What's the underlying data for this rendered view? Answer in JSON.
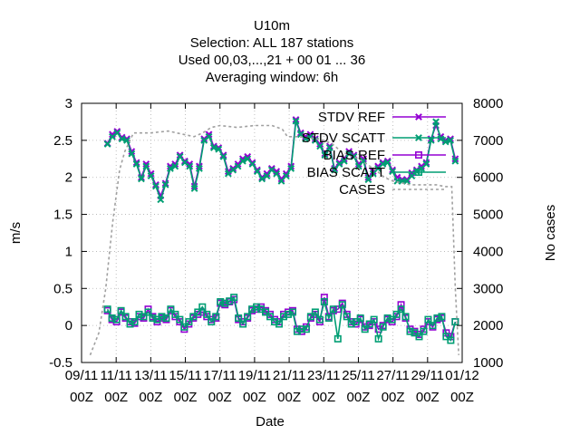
{
  "chart_data": {
    "type": "line",
    "title_lines": [
      "U10m",
      "Selection: ALL     187 stations",
      "Used  00,03,...,21  + 00 01 ... 36",
      "Averaging window:  6h"
    ],
    "xlabel": "Date",
    "ylabel": "m/s",
    "y2label": "No cases",
    "x_day_range": [
      9,
      31
    ],
    "ylim": [
      -0.5,
      3
    ],
    "y2lim": [
      1000,
      8000
    ],
    "grid": true,
    "legend_position": "top-right",
    "x_tick_labels": [
      {
        "d": 9,
        "line1": "09/11",
        "line2": "00Z"
      },
      {
        "d": 11,
        "line1": "11/11",
        "line2": "00Z"
      },
      {
        "d": 13,
        "line1": "13/11",
        "line2": "00Z"
      },
      {
        "d": 15,
        "line1": "15/11",
        "line2": "00Z"
      },
      {
        "d": 17,
        "line1": "17/11",
        "line2": "00Z"
      },
      {
        "d": 19,
        "line1": "19/11",
        "line2": "00Z"
      },
      {
        "d": 21,
        "line1": "21/11",
        "line2": "00Z"
      },
      {
        "d": 23,
        "line1": "23/11",
        "line2": "00Z"
      },
      {
        "d": 25,
        "line1": "25/11",
        "line2": "00Z"
      },
      {
        "d": 27,
        "line1": "27/11",
        "line2": "00Z"
      },
      {
        "d": 29,
        "line1": "29/11",
        "line2": "00Z"
      },
      {
        "d": 31,
        "line1": "01/12",
        "line2": "00Z"
      }
    ],
    "y_ticks": [
      "-0.5",
      "0",
      "0.5",
      "1",
      "1.5",
      "2",
      "2.5",
      "3"
    ],
    "y2_ticks": [
      "1000",
      "2000",
      "3000",
      "4000",
      "5000",
      "6000",
      "7000",
      "8000"
    ],
    "series": [
      {
        "name": "STDV REF",
        "color": "#9400d3",
        "marker": "x",
        "axis": "y",
        "values": [
          2.46,
          2.58,
          2.62,
          2.54,
          2.52,
          2.35,
          2.2,
          2.0,
          2.18,
          2.05,
          1.9,
          1.75,
          1.92,
          2.15,
          2.18,
          2.3,
          2.22,
          2.18,
          1.88,
          2.15,
          2.52,
          2.58,
          2.42,
          2.4,
          2.3,
          2.08,
          2.12,
          2.18,
          2.25,
          2.28,
          2.2,
          2.1,
          2.0,
          2.05,
          2.12,
          2.08,
          1.98,
          2.05,
          2.15,
          2.78,
          2.6,
          2.55,
          2.58,
          2.52,
          2.45,
          2.32,
          2.42,
          2.12,
          2.2,
          2.25,
          2.35,
          2.3,
          2.18,
          2.25,
          2.0,
          2.08,
          2.15,
          2.2,
          2.22,
          2.1,
          2.0,
          1.97,
          1.97,
          2.06,
          2.1,
          2.15,
          2.2,
          2.52,
          2.7,
          2.55,
          2.5,
          2.52,
          2.25
        ]
      },
      {
        "name": "STDV SCATT",
        "color": "#009e73",
        "marker": "x",
        "axis": "y",
        "values": [
          2.45,
          2.55,
          2.6,
          2.52,
          2.5,
          2.32,
          2.18,
          1.98,
          2.15,
          2.02,
          1.88,
          1.7,
          1.9,
          2.12,
          2.15,
          2.28,
          2.2,
          2.15,
          1.85,
          2.12,
          2.5,
          2.55,
          2.4,
          2.38,
          2.28,
          2.05,
          2.1,
          2.15,
          2.22,
          2.25,
          2.18,
          2.08,
          1.98,
          2.02,
          2.1,
          2.05,
          1.95,
          2.02,
          2.12,
          2.76,
          2.58,
          2.52,
          2.55,
          2.5,
          2.42,
          2.3,
          2.4,
          2.1,
          2.18,
          2.22,
          2.32,
          2.28,
          2.15,
          2.22,
          1.97,
          2.05,
          2.12,
          2.18,
          2.2,
          2.08,
          1.95,
          1.95,
          1.95,
          2.02,
          2.08,
          2.12,
          2.18,
          2.5,
          2.75,
          2.52,
          2.48,
          2.5,
          2.22
        ]
      },
      {
        "name": "BIAS REF",
        "color": "#9400d3",
        "marker": "square",
        "axis": "y",
        "values": [
          0.2,
          0.08,
          0.05,
          0.18,
          0.1,
          0.05,
          0.03,
          0.12,
          0.1,
          0.22,
          0.12,
          0.05,
          0.1,
          0.08,
          0.2,
          0.12,
          0.05,
          -0.05,
          0.02,
          0.1,
          0.15,
          0.18,
          0.12,
          0.08,
          0.1,
          0.3,
          0.28,
          0.32,
          0.35,
          0.08,
          0.05,
          0.1,
          0.2,
          0.22,
          0.25,
          0.2,
          0.15,
          0.08,
          0.05,
          0.15,
          0.18,
          0.2,
          -0.05,
          -0.08,
          -0.02,
          0.1,
          0.15,
          0.05,
          0.38,
          0.12,
          0.2,
          0.22,
          0.3,
          0.15,
          0.05,
          0.02,
          0.08,
          -0.02,
          0.0,
          0.05,
          -0.05,
          0.0,
          0.08,
          0.05,
          0.12,
          0.28,
          0.1,
          -0.05,
          -0.08,
          -0.12,
          -0.05,
          0.05,
          -0.02,
          0.08,
          0.1,
          -0.1,
          -0.15,
          0.05
        ]
      },
      {
        "name": "BIAS SCATT",
        "color": "#009e73",
        "marker": "square",
        "axis": "y",
        "values": [
          0.22,
          0.1,
          0.08,
          0.2,
          0.12,
          0.02,
          0.05,
          0.15,
          0.12,
          0.18,
          0.1,
          0.08,
          0.12,
          0.1,
          0.22,
          0.15,
          0.08,
          -0.02,
          0.05,
          0.12,
          0.18,
          0.25,
          0.15,
          0.05,
          0.12,
          0.32,
          0.3,
          0.33,
          0.38,
          0.1,
          0.02,
          0.12,
          0.22,
          0.25,
          0.22,
          0.18,
          0.12,
          0.05,
          0.02,
          0.12,
          0.15,
          0.18,
          -0.08,
          -0.05,
          -0.05,
          0.12,
          0.18,
          0.08,
          0.32,
          0.1,
          0.22,
          -0.18,
          0.28,
          0.12,
          0.02,
          0.05,
          0.1,
          -0.05,
          0.02,
          0.08,
          -0.18,
          -0.02,
          0.1,
          0.08,
          0.15,
          0.22,
          0.12,
          -0.08,
          -0.1,
          -0.15,
          -0.08,
          0.08,
          0.0,
          0.1,
          0.12,
          -0.15,
          -0.2,
          0.05
        ]
      },
      {
        "name": "CASES",
        "color": "#a0a0a0",
        "marker": "none",
        "axis": "y2",
        "points": [
          [
            9.5,
            1200
          ],
          [
            10.0,
            1800
          ],
          [
            10.4,
            3000
          ],
          [
            10.8,
            4800
          ],
          [
            11.2,
            6200
          ],
          [
            11.5,
            6700
          ],
          [
            11.8,
            7000
          ],
          [
            12.0,
            7200
          ],
          [
            13.0,
            7200
          ],
          [
            14.0,
            7250
          ],
          [
            15.0,
            7150
          ],
          [
            15.5,
            7100
          ],
          [
            16.0,
            7200
          ],
          [
            16.5,
            7350
          ],
          [
            17.0,
            7400
          ],
          [
            18.0,
            7350
          ],
          [
            19.0,
            7400
          ],
          [
            20.0,
            7400
          ],
          [
            20.6,
            7300
          ],
          [
            20.9,
            7100
          ],
          [
            21.5,
            7100
          ],
          [
            22.5,
            7050
          ],
          [
            23.0,
            7000
          ],
          [
            23.5,
            6900
          ],
          [
            24.0,
            6700
          ],
          [
            25.0,
            6500
          ],
          [
            26.0,
            6200
          ],
          [
            26.5,
            6000
          ],
          [
            27.0,
            5900
          ],
          [
            28.0,
            5800
          ],
          [
            29.0,
            5800
          ],
          [
            29.5,
            5800
          ],
          [
            30.0,
            5750
          ],
          [
            30.4,
            5750
          ],
          [
            30.6,
            3000
          ],
          [
            30.8,
            1200
          ]
        ]
      }
    ]
  }
}
